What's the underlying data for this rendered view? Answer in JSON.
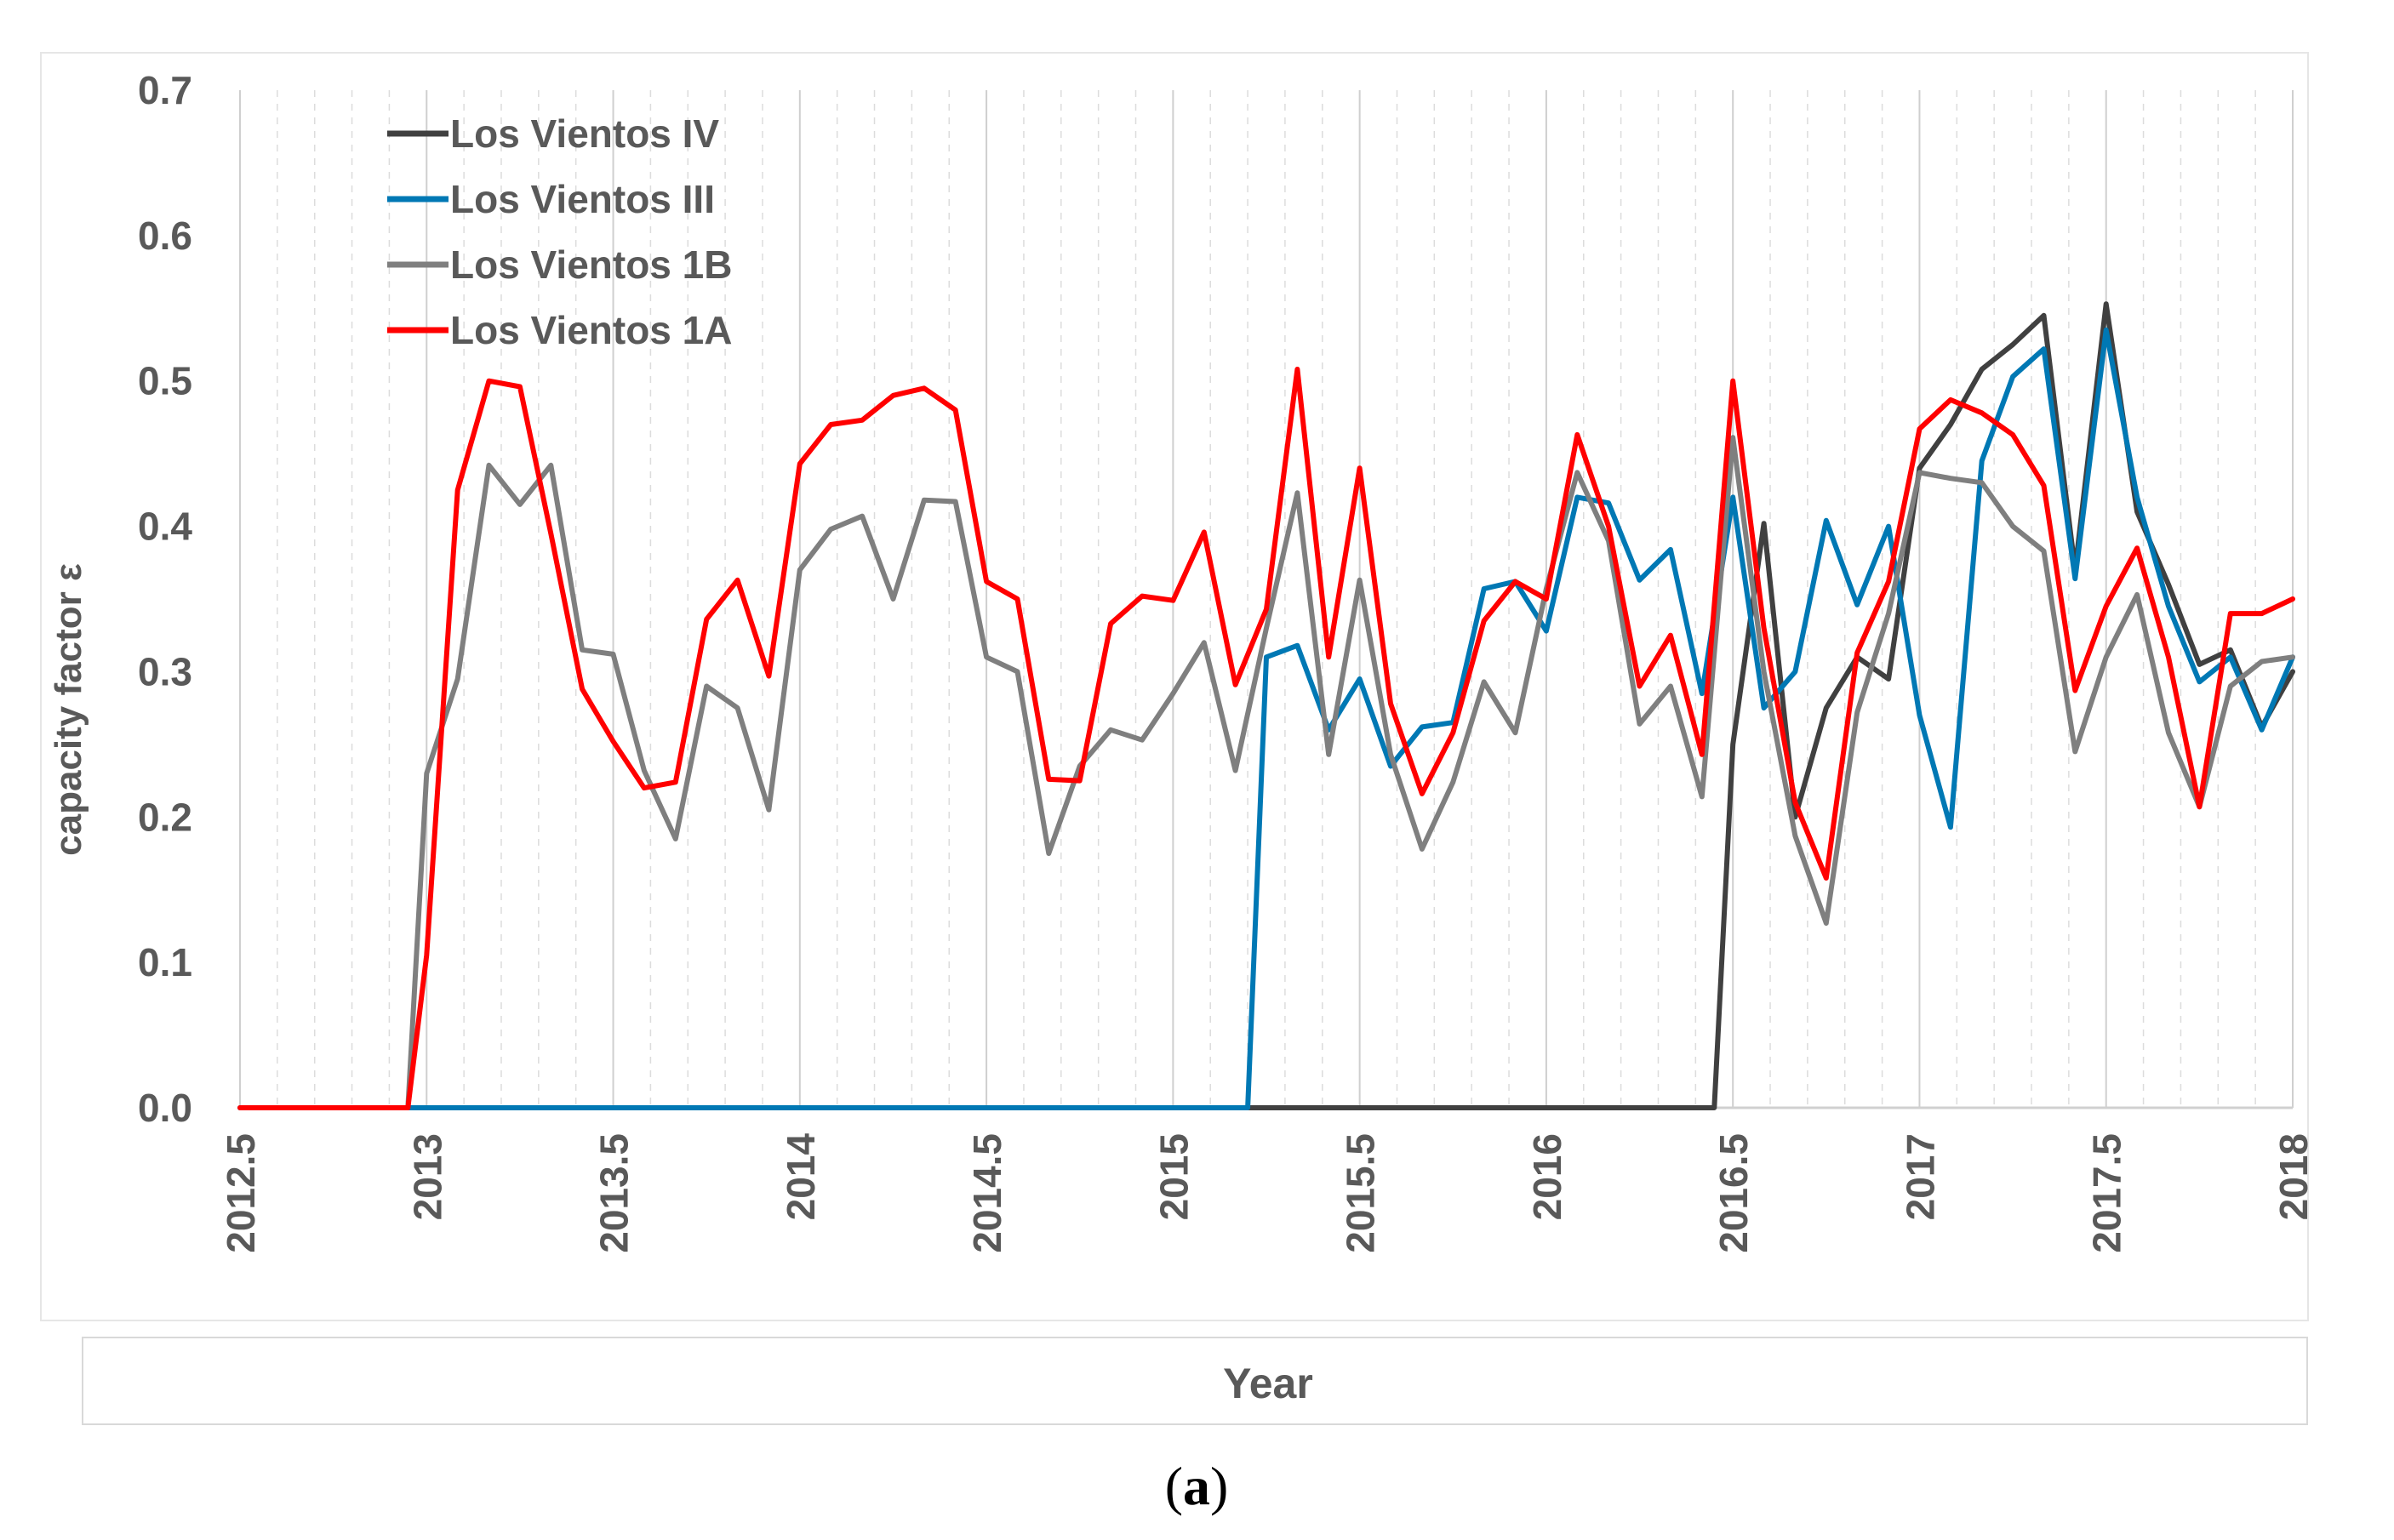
{
  "chart_data": {
    "type": "line",
    "xlabel": "Year",
    "ylabel": "capacity factor ε",
    "caption": {
      "open": "(",
      "letter": "a",
      "close": ")"
    },
    "xlim": [
      2012.5,
      2018
    ],
    "ylim": [
      0,
      0.7
    ],
    "x_ticks": [
      "2012.5",
      "2013",
      "2013.5",
      "2014",
      "2014.5",
      "2015",
      "2015.5",
      "2016",
      "2016.5",
      "2017",
      "2017.5",
      "2018"
    ],
    "y_ticks": [
      "0.0",
      "0.1",
      "0.2",
      "0.3",
      "0.4",
      "0.5",
      "0.6",
      "0.7"
    ],
    "gridlines": "vertical",
    "legend_position": "top-left",
    "series": [
      {
        "name": "Los Vientos IV",
        "color": "#404040",
        "points": [
          [
            2012.5,
            0
          ],
          [
            2016.45,
            0
          ],
          [
            2016.5,
            0.25
          ],
          [
            2016.583,
            0.402
          ],
          [
            2016.667,
            0.2
          ],
          [
            2016.75,
            0.275
          ],
          [
            2016.833,
            0.31
          ],
          [
            2016.917,
            0.295
          ],
          [
            2017.0,
            0.44
          ],
          [
            2017.083,
            0.47
          ],
          [
            2017.167,
            0.508
          ],
          [
            2017.25,
            0.525
          ],
          [
            2017.333,
            0.545
          ],
          [
            2017.417,
            0.37
          ],
          [
            2017.5,
            0.553
          ],
          [
            2017.583,
            0.41
          ],
          [
            2017.667,
            0.36
          ],
          [
            2017.75,
            0.305
          ],
          [
            2017.833,
            0.315
          ],
          [
            2017.917,
            0.262
          ],
          [
            2018.0,
            0.3
          ]
        ]
      },
      {
        "name": "Los Vientos III",
        "color": "#0078b4",
        "points": [
          [
            2012.5,
            0
          ],
          [
            2015.2,
            0
          ],
          [
            2015.25,
            0.31
          ],
          [
            2015.333,
            0.318
          ],
          [
            2015.417,
            0.26
          ],
          [
            2015.5,
            0.295
          ],
          [
            2015.583,
            0.235
          ],
          [
            2015.667,
            0.262
          ],
          [
            2015.75,
            0.265
          ],
          [
            2015.833,
            0.357
          ],
          [
            2015.917,
            0.362
          ],
          [
            2016.0,
            0.328
          ],
          [
            2016.083,
            0.42
          ],
          [
            2016.167,
            0.416
          ],
          [
            2016.25,
            0.363
          ],
          [
            2016.333,
            0.384
          ],
          [
            2016.417,
            0.285
          ],
          [
            2016.5,
            0.42
          ],
          [
            2016.583,
            0.275
          ],
          [
            2016.667,
            0.3
          ],
          [
            2016.75,
            0.404
          ],
          [
            2016.833,
            0.346
          ],
          [
            2016.917,
            0.4
          ],
          [
            2017.0,
            0.27
          ],
          [
            2017.083,
            0.193
          ],
          [
            2017.167,
            0.445
          ],
          [
            2017.25,
            0.503
          ],
          [
            2017.333,
            0.522
          ],
          [
            2017.417,
            0.364
          ],
          [
            2017.5,
            0.535
          ],
          [
            2017.583,
            0.42
          ],
          [
            2017.667,
            0.345
          ],
          [
            2017.75,
            0.293
          ],
          [
            2017.833,
            0.31
          ],
          [
            2017.917,
            0.26
          ],
          [
            2018.0,
            0.31
          ]
        ]
      },
      {
        "name": "Los Vientos 1B",
        "color": "#7f7f7f",
        "points": [
          [
            2012.5,
            0
          ],
          [
            2012.95,
            0
          ],
          [
            2013.0,
            0.23
          ],
          [
            2013.083,
            0.295
          ],
          [
            2013.167,
            0.442
          ],
          [
            2013.25,
            0.415
          ],
          [
            2013.333,
            0.442
          ],
          [
            2013.417,
            0.315
          ],
          [
            2013.5,
            0.312
          ],
          [
            2013.583,
            0.232
          ],
          [
            2013.667,
            0.185
          ],
          [
            2013.75,
            0.29
          ],
          [
            2013.833,
            0.275
          ],
          [
            2013.917,
            0.205
          ],
          [
            2014.0,
            0.37
          ],
          [
            2014.083,
            0.398
          ],
          [
            2014.167,
            0.407
          ],
          [
            2014.25,
            0.35
          ],
          [
            2014.333,
            0.418
          ],
          [
            2014.417,
            0.417
          ],
          [
            2014.5,
            0.31
          ],
          [
            2014.583,
            0.3
          ],
          [
            2014.667,
            0.175
          ],
          [
            2014.75,
            0.235
          ],
          [
            2014.833,
            0.26
          ],
          [
            2014.917,
            0.253
          ],
          [
            2015.0,
            0.285
          ],
          [
            2015.083,
            0.32
          ],
          [
            2015.167,
            0.232
          ],
          [
            2015.25,
            0.33
          ],
          [
            2015.333,
            0.423
          ],
          [
            2015.417,
            0.243
          ],
          [
            2015.5,
            0.363
          ],
          [
            2015.583,
            0.243
          ],
          [
            2015.667,
            0.178
          ],
          [
            2015.75,
            0.224
          ],
          [
            2015.833,
            0.293
          ],
          [
            2015.917,
            0.258
          ],
          [
            2016.0,
            0.357
          ],
          [
            2016.083,
            0.437
          ],
          [
            2016.167,
            0.39
          ],
          [
            2016.25,
            0.264
          ],
          [
            2016.333,
            0.29
          ],
          [
            2016.417,
            0.214
          ],
          [
            2016.5,
            0.461
          ],
          [
            2016.583,
            0.3
          ],
          [
            2016.667,
            0.187
          ],
          [
            2016.75,
            0.127
          ],
          [
            2016.833,
            0.272
          ],
          [
            2016.917,
            0.34
          ],
          [
            2017.0,
            0.437
          ],
          [
            2017.083,
            0.433
          ],
          [
            2017.167,
            0.43
          ],
          [
            2017.25,
            0.4
          ],
          [
            2017.333,
            0.383
          ],
          [
            2017.417,
            0.245
          ],
          [
            2017.5,
            0.31
          ],
          [
            2017.583,
            0.353
          ],
          [
            2017.667,
            0.258
          ],
          [
            2017.75,
            0.207
          ],
          [
            2017.833,
            0.29
          ],
          [
            2017.917,
            0.307
          ],
          [
            2018.0,
            0.31
          ]
        ]
      },
      {
        "name": "Los Vientos 1A",
        "color": "#ff0000",
        "points": [
          [
            2012.5,
            0
          ],
          [
            2012.95,
            0
          ],
          [
            2013.0,
            0.105
          ],
          [
            2013.083,
            0.425
          ],
          [
            2013.167,
            0.5
          ],
          [
            2013.25,
            0.496
          ],
          [
            2013.333,
            0.395
          ],
          [
            2013.417,
            0.288
          ],
          [
            2013.5,
            0.252
          ],
          [
            2013.583,
            0.22
          ],
          [
            2013.667,
            0.224
          ],
          [
            2013.75,
            0.336
          ],
          [
            2013.833,
            0.363
          ],
          [
            2013.917,
            0.297
          ],
          [
            2014.0,
            0.443
          ],
          [
            2014.083,
            0.47
          ],
          [
            2014.167,
            0.473
          ],
          [
            2014.25,
            0.49
          ],
          [
            2014.333,
            0.495
          ],
          [
            2014.417,
            0.48
          ],
          [
            2014.5,
            0.362
          ],
          [
            2014.583,
            0.35
          ],
          [
            2014.667,
            0.226
          ],
          [
            2014.75,
            0.225
          ],
          [
            2014.833,
            0.333
          ],
          [
            2014.917,
            0.352
          ],
          [
            2015.0,
            0.349
          ],
          [
            2015.083,
            0.396
          ],
          [
            2015.167,
            0.291
          ],
          [
            2015.25,
            0.343
          ],
          [
            2015.333,
            0.508
          ],
          [
            2015.417,
            0.31
          ],
          [
            2015.5,
            0.44
          ],
          [
            2015.583,
            0.278
          ],
          [
            2015.667,
            0.216
          ],
          [
            2015.75,
            0.258
          ],
          [
            2015.833,
            0.335
          ],
          [
            2015.917,
            0.362
          ],
          [
            2016.0,
            0.35
          ],
          [
            2016.083,
            0.463
          ],
          [
            2016.167,
            0.4
          ],
          [
            2016.25,
            0.29
          ],
          [
            2016.333,
            0.325
          ],
          [
            2016.417,
            0.243
          ],
          [
            2016.5,
            0.5
          ],
          [
            2016.583,
            0.33
          ],
          [
            2016.667,
            0.21
          ],
          [
            2016.75,
            0.158
          ],
          [
            2016.833,
            0.313
          ],
          [
            2016.917,
            0.362
          ],
          [
            2017.0,
            0.467
          ],
          [
            2017.083,
            0.487
          ],
          [
            2017.167,
            0.478
          ],
          [
            2017.25,
            0.463
          ],
          [
            2017.333,
            0.428
          ],
          [
            2017.417,
            0.287
          ],
          [
            2017.5,
            0.345
          ],
          [
            2017.583,
            0.385
          ],
          [
            2017.667,
            0.31
          ],
          [
            2017.75,
            0.207
          ],
          [
            2017.833,
            0.34
          ],
          [
            2017.917,
            0.34
          ],
          [
            2018.0,
            0.35
          ]
        ]
      }
    ]
  }
}
